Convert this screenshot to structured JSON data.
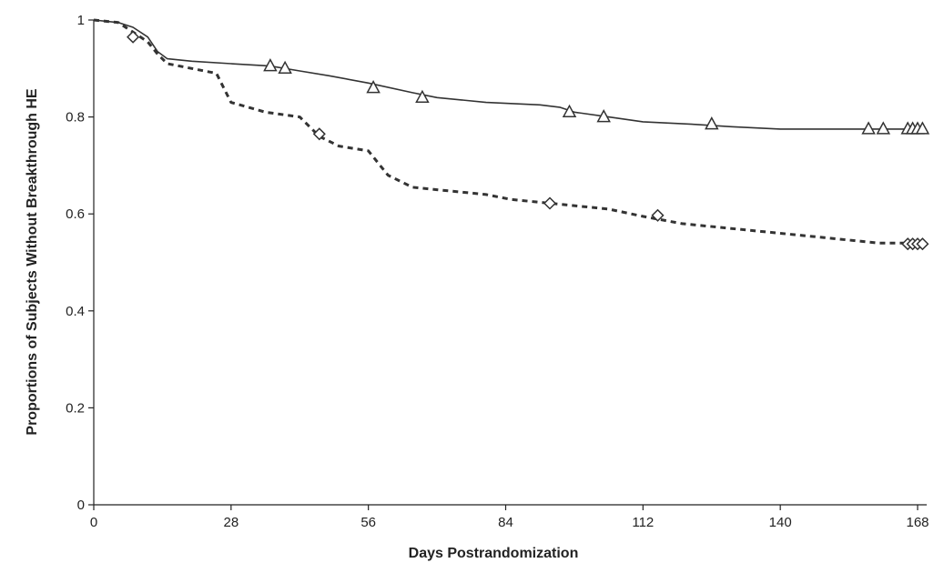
{
  "chart_data": {
    "type": "line",
    "title": "",
    "xlabel": "Days Postrandomization",
    "ylabel": "Proportions of Subjects Without Breakthrough HE",
    "xlim": [
      0,
      168
    ],
    "ylim": [
      0,
      1
    ],
    "x_ticks": [
      0,
      28,
      56,
      84,
      112,
      140,
      168
    ],
    "x_tick_labels": [
      "0",
      "28",
      "56",
      "84",
      "112",
      "140",
      "168"
    ],
    "y_ticks": [
      0,
      0.2,
      0.4,
      0.6,
      0.8,
      1
    ],
    "y_tick_labels": [
      "0",
      "0.2",
      "0.4",
      "0.6",
      "0.8",
      "1"
    ],
    "grid": false,
    "legend": "none",
    "series": [
      {
        "style": "solid",
        "marker": "triangle",
        "color": "#333333",
        "x": [
          0,
          5,
          8,
          11,
          13,
          15,
          20,
          28,
          36,
          42,
          48,
          56,
          65,
          70,
          75,
          80,
          91,
          95,
          98,
          105,
          112,
          122,
          130,
          140,
          150,
          160,
          169
        ],
        "y": [
          1,
          0.995,
          0.985,
          0.965,
          0.935,
          0.92,
          0.915,
          0.91,
          0.905,
          0.895,
          0.885,
          0.87,
          0.85,
          0.84,
          0.835,
          0.83,
          0.825,
          0.82,
          0.81,
          0.8,
          0.79,
          0.785,
          0.78,
          0.775,
          0.775,
          0.775,
          0.775
        ],
        "marker_x": [
          36,
          39,
          57,
          67,
          97,
          104,
          126,
          158,
          161,
          166,
          167,
          168,
          169
        ],
        "marker_y": [
          0.905,
          0.9,
          0.86,
          0.84,
          0.81,
          0.8,
          0.785,
          0.775,
          0.775,
          0.775,
          0.775,
          0.775,
          0.775
        ]
      },
      {
        "style": "dashed",
        "marker": "diamond",
        "color": "#333333",
        "x": [
          0,
          5,
          8,
          11,
          13,
          15,
          20,
          25,
          28,
          35,
          42,
          46,
          50,
          56,
          60,
          65,
          70,
          75,
          80,
          85,
          90,
          95,
          100,
          105,
          112,
          120,
          130,
          140,
          150,
          160,
          169
        ],
        "y": [
          1,
          0.995,
          0.975,
          0.955,
          0.93,
          0.91,
          0.9,
          0.89,
          0.83,
          0.81,
          0.8,
          0.76,
          0.74,
          0.73,
          0.68,
          0.655,
          0.65,
          0.645,
          0.64,
          0.63,
          0.625,
          0.62,
          0.615,
          0.61,
          0.595,
          0.58,
          0.57,
          0.56,
          0.55,
          0.54,
          0.54
        ],
        "marker_x": [
          8,
          46,
          93,
          115,
          166,
          167,
          168,
          169
        ],
        "marker_y": [
          0.965,
          0.765,
          0.622,
          0.597,
          0.538,
          0.538,
          0.538,
          0.538
        ]
      }
    ]
  }
}
